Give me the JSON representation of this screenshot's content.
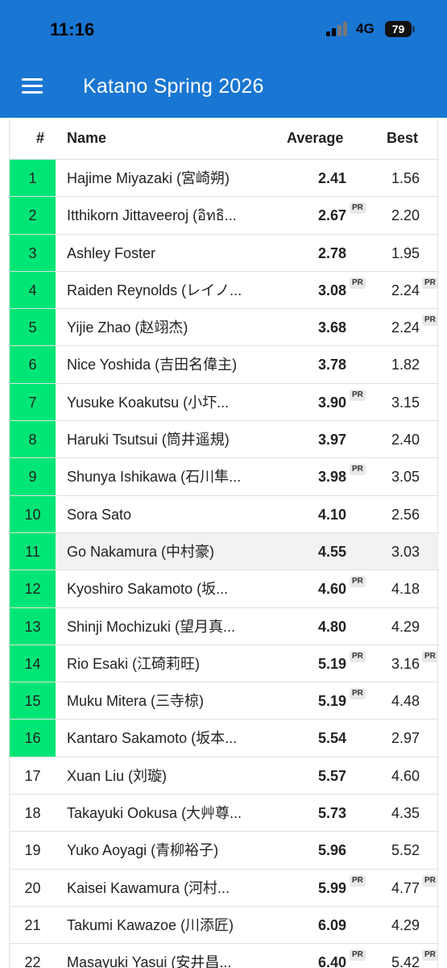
{
  "status_bar": {
    "time": "11:16",
    "network": "4G",
    "battery": "79"
  },
  "app_bar": {
    "title": "Katano Spring 2026",
    "menu_icon": "menu-icon"
  },
  "table": {
    "headers": {
      "rank": "#",
      "name": "Name",
      "average": "Average",
      "best": "Best"
    },
    "pr_label": "PR",
    "rows": [
      {
        "rank": "1",
        "name": "Hajime Miyazaki (宮崎朔)",
        "average": "2.41",
        "best": "1.56",
        "average_pr": false,
        "best_pr": false,
        "advancing": true,
        "highlight": false
      },
      {
        "rank": "2",
        "name": "Itthikorn Jittaveeroj (อิทธิ...",
        "average": "2.67",
        "best": "2.20",
        "average_pr": true,
        "best_pr": false,
        "advancing": true,
        "highlight": false
      },
      {
        "rank": "3",
        "name": "Ashley Foster",
        "average": "2.78",
        "best": "1.95",
        "average_pr": false,
        "best_pr": false,
        "advancing": true,
        "highlight": false
      },
      {
        "rank": "4",
        "name": "Raiden Reynolds (レイノ...",
        "average": "3.08",
        "best": "2.24",
        "average_pr": true,
        "best_pr": true,
        "advancing": true,
        "highlight": false
      },
      {
        "rank": "5",
        "name": "Yijie Zhao (赵翊杰)",
        "average": "3.68",
        "best": "2.24",
        "average_pr": false,
        "best_pr": true,
        "advancing": true,
        "highlight": false
      },
      {
        "rank": "6",
        "name": "Nice Yoshida (吉田名偉主)",
        "average": "3.78",
        "best": "1.82",
        "average_pr": false,
        "best_pr": false,
        "advancing": true,
        "highlight": false
      },
      {
        "rank": "7",
        "name": "Yusuke Koakutsu (小圷...",
        "average": "3.90",
        "best": "3.15",
        "average_pr": true,
        "best_pr": false,
        "advancing": true,
        "highlight": false
      },
      {
        "rank": "8",
        "name": "Haruki Tsutsui (筒井遥規)",
        "average": "3.97",
        "best": "2.40",
        "average_pr": false,
        "best_pr": false,
        "advancing": true,
        "highlight": false
      },
      {
        "rank": "9",
        "name": "Shunya Ishikawa (石川隼...",
        "average": "3.98",
        "best": "3.05",
        "average_pr": true,
        "best_pr": false,
        "advancing": true,
        "highlight": false
      },
      {
        "rank": "10",
        "name": "Sora Sato",
        "average": "4.10",
        "best": "2.56",
        "average_pr": false,
        "best_pr": false,
        "advancing": true,
        "highlight": false
      },
      {
        "rank": "11",
        "name": "Go Nakamura (中村豪)",
        "average": "4.55",
        "best": "3.03",
        "average_pr": false,
        "best_pr": false,
        "advancing": true,
        "highlight": true
      },
      {
        "rank": "12",
        "name": "Kyoshiro Sakamoto (坂...",
        "average": "4.60",
        "best": "4.18",
        "average_pr": true,
        "best_pr": false,
        "advancing": true,
        "highlight": false
      },
      {
        "rank": "13",
        "name": "Shinji Mochizuki (望月真...",
        "average": "4.80",
        "best": "4.29",
        "average_pr": false,
        "best_pr": false,
        "advancing": true,
        "highlight": false
      },
      {
        "rank": "14",
        "name": "Rio Esaki (江碕莉旺)",
        "average": "5.19",
        "best": "3.16",
        "average_pr": true,
        "best_pr": true,
        "advancing": true,
        "highlight": false
      },
      {
        "rank": "15",
        "name": "Muku Mitera (三寺椋)",
        "average": "5.19",
        "best": "4.48",
        "average_pr": true,
        "best_pr": false,
        "advancing": true,
        "highlight": false
      },
      {
        "rank": "16",
        "name": "Kantaro Sakamoto (坂本...",
        "average": "5.54",
        "best": "2.97",
        "average_pr": false,
        "best_pr": false,
        "advancing": true,
        "highlight": false
      },
      {
        "rank": "17",
        "name": "Xuan Liu (刘璇)",
        "average": "5.57",
        "best": "4.60",
        "average_pr": false,
        "best_pr": false,
        "advancing": false,
        "highlight": false
      },
      {
        "rank": "18",
        "name": "Takayuki Ookusa (大艸尊...",
        "average": "5.73",
        "best": "4.35",
        "average_pr": false,
        "best_pr": false,
        "advancing": false,
        "highlight": false
      },
      {
        "rank": "19",
        "name": "Yuko Aoyagi (青柳裕子)",
        "average": "5.96",
        "best": "5.52",
        "average_pr": false,
        "best_pr": false,
        "advancing": false,
        "highlight": false
      },
      {
        "rank": "20",
        "name": "Kaisei Kawamura (河村...",
        "average": "5.99",
        "best": "4.77",
        "average_pr": true,
        "best_pr": true,
        "advancing": false,
        "highlight": false
      },
      {
        "rank": "21",
        "name": "Takumi Kawazoe (川添匠)",
        "average": "6.09",
        "best": "4.29",
        "average_pr": false,
        "best_pr": false,
        "advancing": false,
        "highlight": false
      },
      {
        "rank": "22",
        "name": "Masayuki Yasui (安井昌...",
        "average": "6.40",
        "best": "5.42",
        "average_pr": true,
        "best_pr": true,
        "advancing": false,
        "highlight": false
      }
    ]
  },
  "colors": {
    "app_bar": "#1976d2",
    "advancing": "#00e676"
  }
}
